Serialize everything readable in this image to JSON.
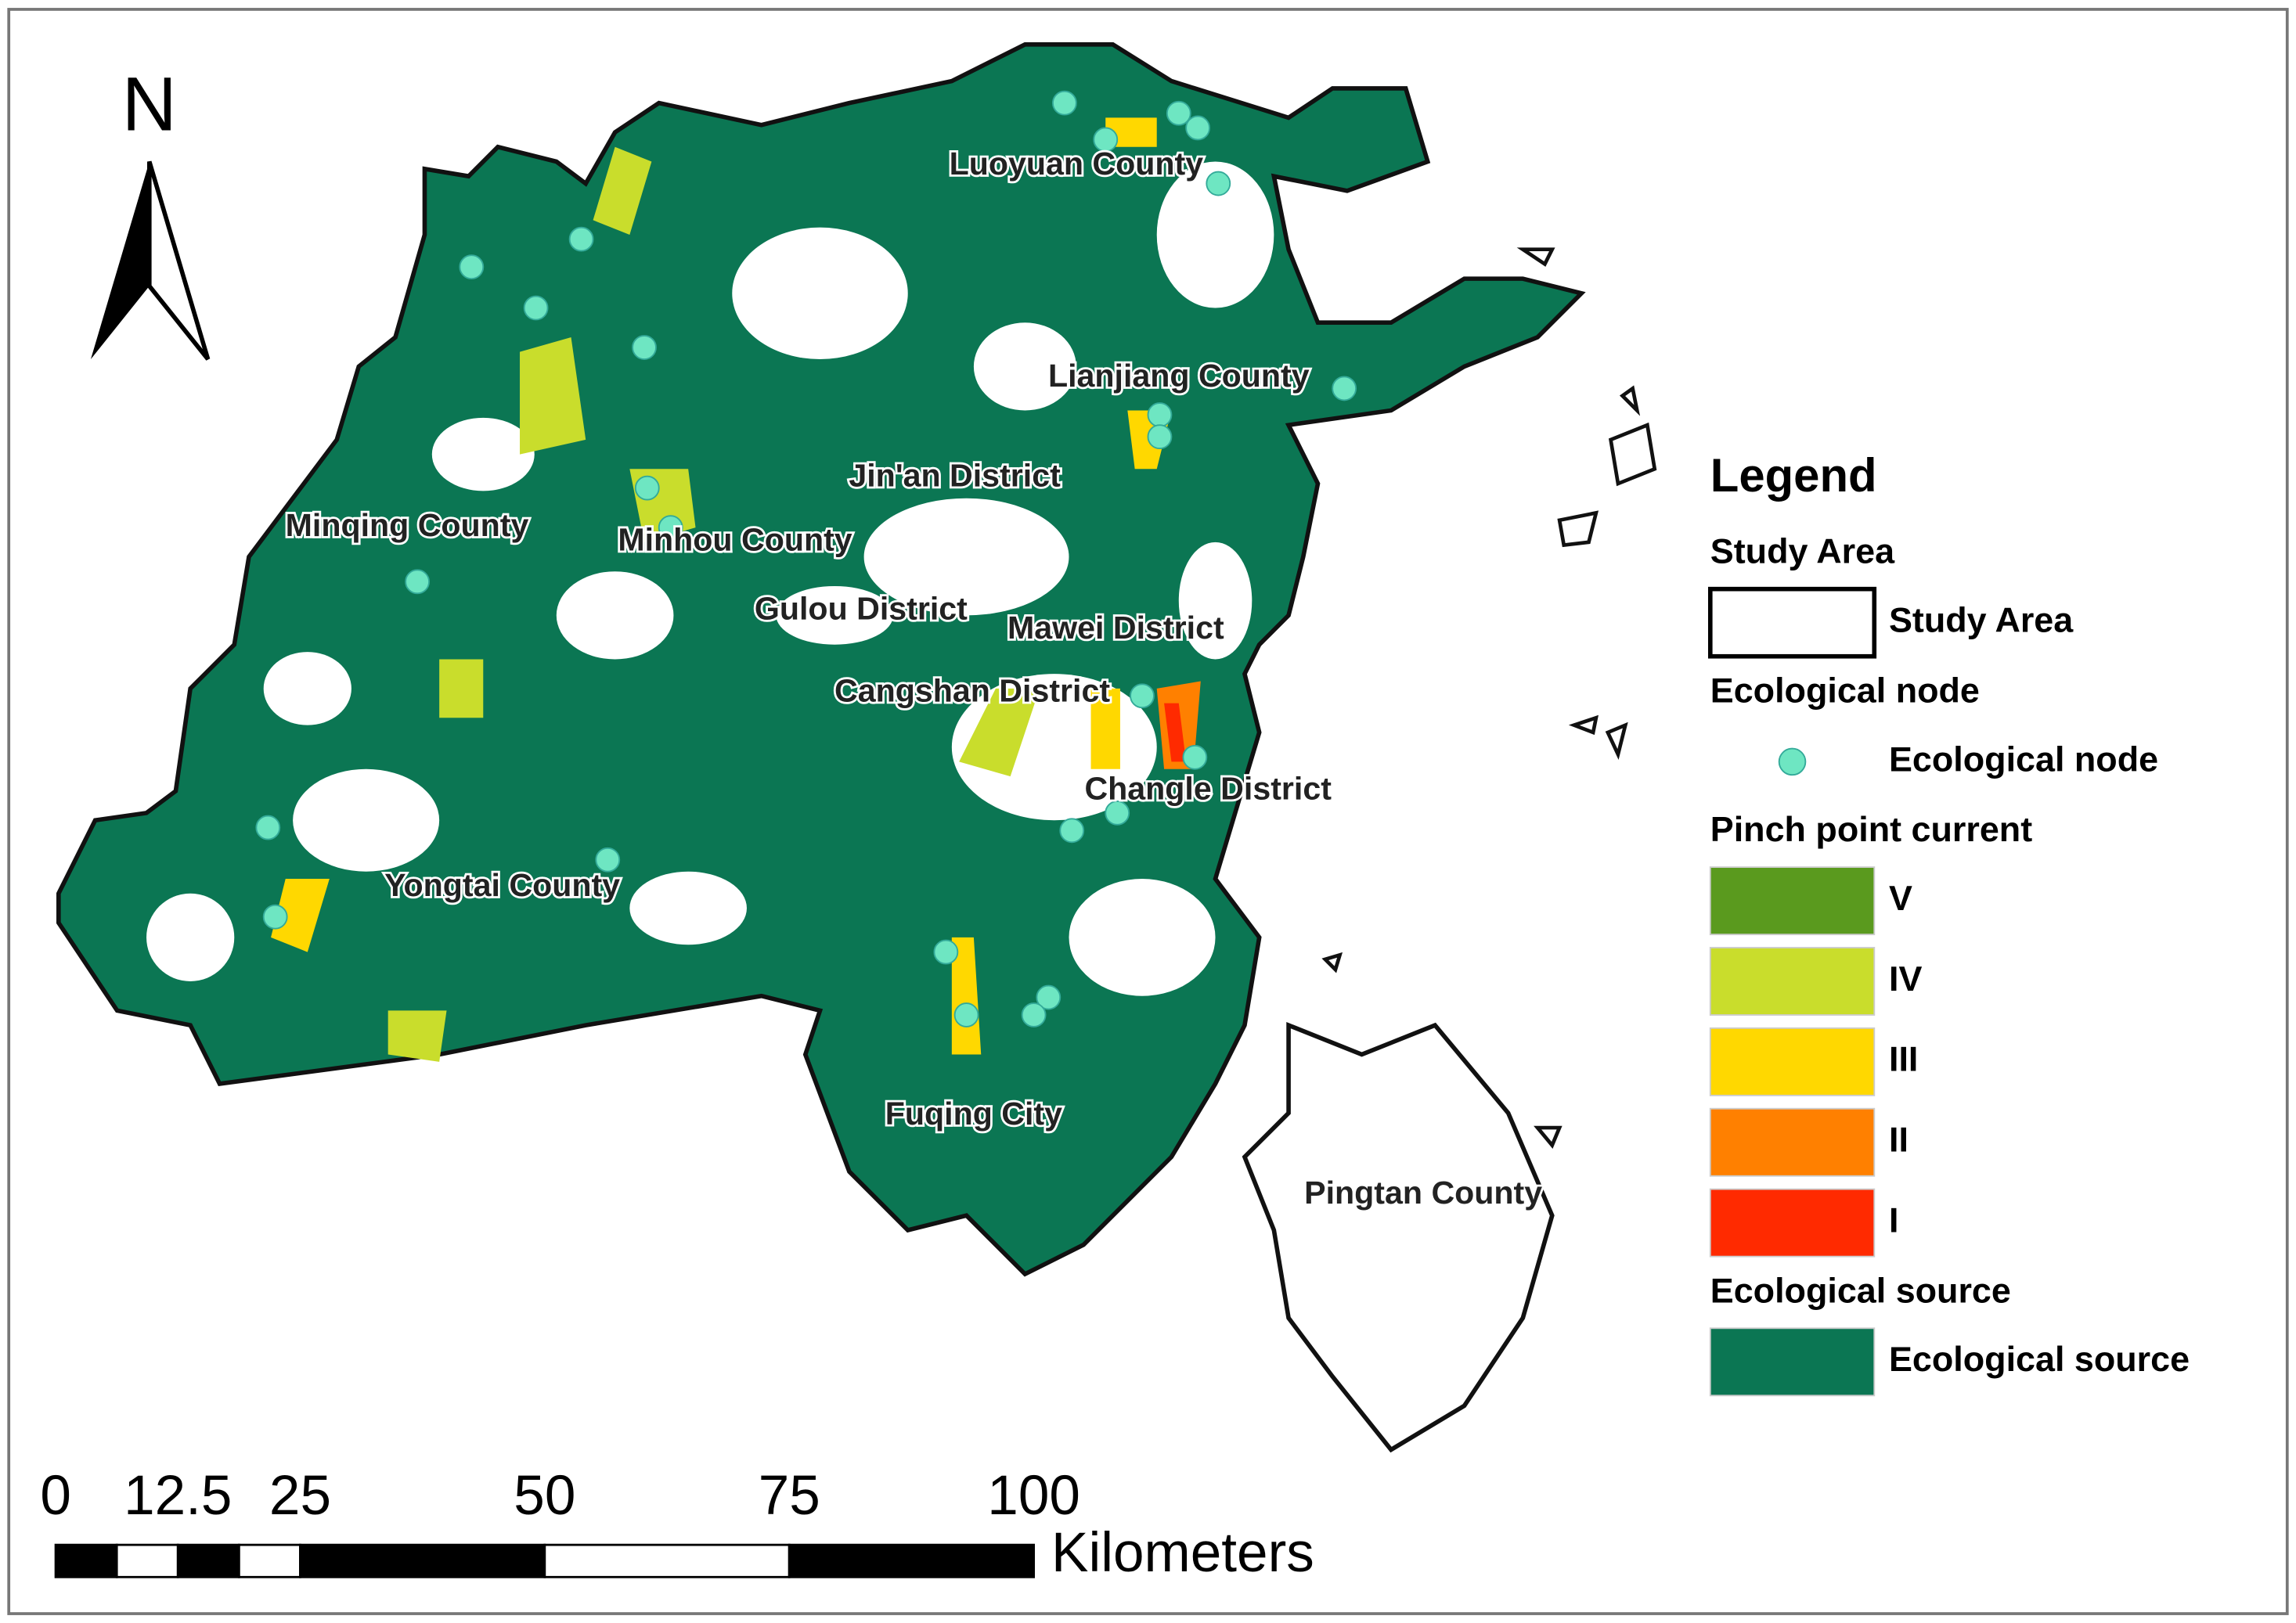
{
  "north_arrow": "N",
  "places": [
    "Luoyuan County",
    "Lianjiang County",
    "Jin'an District",
    "Minqing County",
    "Minhou County",
    "Gulou District",
    "Mawei District",
    "Cangshan District",
    "Changle District",
    "Yongtai County",
    "Fuqing City",
    "Pingtan County"
  ],
  "legend": {
    "title": "Legend",
    "sections": [
      {
        "header": "Study Area",
        "items": [
          {
            "label": "Study Area",
            "color": "#ffffff",
            "kind": "box"
          }
        ]
      },
      {
        "header": "Ecological node",
        "items": [
          {
            "label": "Ecological node",
            "color": "#6ee6c2",
            "kind": "dot"
          }
        ]
      },
      {
        "header": "Pinch point current",
        "items": [
          {
            "label": "V",
            "color": "#5a9a1e",
            "kind": "patch"
          },
          {
            "label": "IV",
            "color": "#c9dd2c",
            "kind": "patch"
          },
          {
            "label": "III",
            "color": "#ffd800",
            "kind": "patch"
          },
          {
            "label": "II",
            "color": "#ff8000",
            "kind": "patch"
          },
          {
            "label": "I",
            "color": "#ff2a00",
            "kind": "patch"
          }
        ]
      },
      {
        "header": "Ecological source",
        "items": [
          {
            "label": "Ecological source",
            "color": "#0b7653",
            "kind": "patch"
          }
        ]
      }
    ]
  },
  "scale_bar": {
    "ticks": [
      0,
      12.5,
      25,
      50,
      75,
      100
    ],
    "unit": "Kilometers"
  }
}
